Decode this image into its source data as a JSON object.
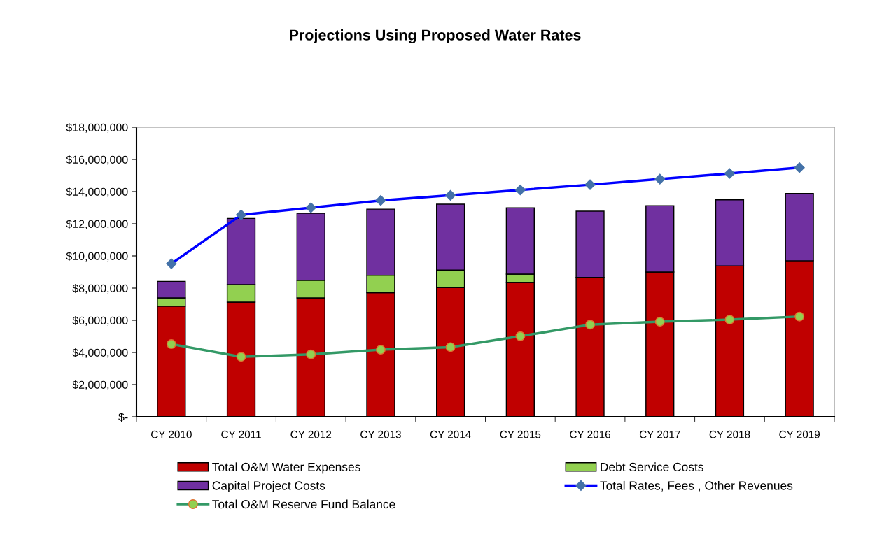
{
  "chart_data": {
    "type": "bar",
    "title": "Projections Using Proposed Water Rates",
    "categories": [
      "CY 2010",
      "CY 2011",
      "CY 2012",
      "CY 2013",
      "CY 2014",
      "CY 2015",
      "CY 2016",
      "CY 2017",
      "CY 2018",
      "CY 2019"
    ],
    "stacked": true,
    "series": [
      {
        "name": "Total O&M Water Expenses",
        "color": "#c00000",
        "values": [
          6880000,
          7130000,
          7390000,
          7720000,
          8030000,
          8350000,
          8670000,
          9000000,
          9380000,
          9700000
        ]
      },
      {
        "name": "Debt Service Costs",
        "color": "#92d050",
        "values": [
          510000,
          1090000,
          1100000,
          1080000,
          1090000,
          520000,
          0,
          0,
          0,
          0
        ]
      },
      {
        "name": "Capital Project Costs",
        "color": "#7030a0",
        "values": [
          1030000,
          4110000,
          4160000,
          4110000,
          4100000,
          4120000,
          4110000,
          4120000,
          4110000,
          4180000
        ]
      },
      {
        "name": "Total Rates, Fees , Other Revenues",
        "type": "line",
        "color": "#0000ff",
        "marker": "diamond",
        "values": [
          9520000,
          12550000,
          13000000,
          13450000,
          13770000,
          14100000,
          14430000,
          14780000,
          15130000,
          15490000
        ]
      },
      {
        "name": "Total O&M Reserve Fund Balance",
        "type": "line",
        "color": "#339966",
        "marker": "circle",
        "values": [
          4520000,
          3730000,
          3880000,
          4170000,
          4330000,
          5010000,
          5730000,
          5910000,
          6040000,
          6230000
        ]
      }
    ],
    "ylim": [
      0,
      18000000
    ],
    "yticks": [
      {
        "value": 0,
        "label": "$-"
      },
      {
        "value": 2000000,
        "label": "$2,000,000"
      },
      {
        "value": 4000000,
        "label": "$4,000,000"
      },
      {
        "value": 6000000,
        "label": "$6,000,000"
      },
      {
        "value": 8000000,
        "label": "$8,000,000"
      },
      {
        "value": 10000000,
        "label": "$10,000,000"
      },
      {
        "value": 12000000,
        "label": "$12,000,000"
      },
      {
        "value": 14000000,
        "label": "$14,000,000"
      },
      {
        "value": 16000000,
        "label": "$16,000,000"
      },
      {
        "value": 18000000,
        "label": "$18,000,000"
      }
    ],
    "grid": false,
    "legend": "bottom"
  }
}
